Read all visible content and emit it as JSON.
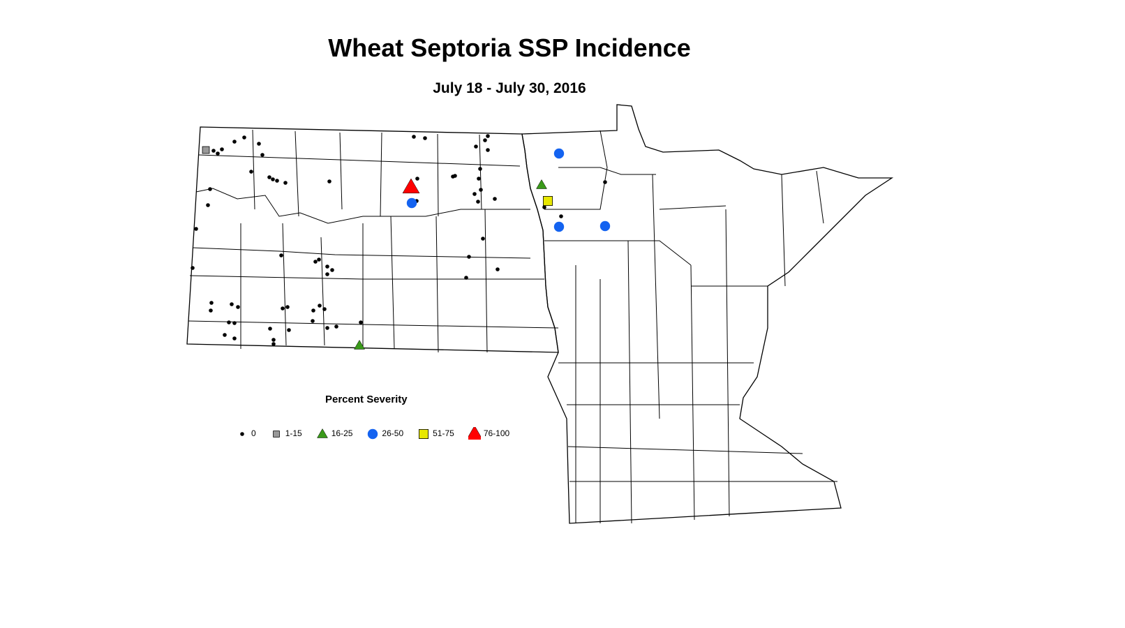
{
  "map": {
    "title": "Wheat Septoria SSP Incidence",
    "subtitle": "July 18 - July 30, 2016",
    "outline_color": "#000000",
    "background": "#ffffff"
  },
  "legend": {
    "title": "Percent Severity",
    "items": [
      {
        "label": "0",
        "shape": "dot",
        "color": "#000000"
      },
      {
        "label": "1-15",
        "shape": "square",
        "color": "#999999"
      },
      {
        "label": "16-25",
        "shape": "triangle",
        "color": "#3a9a1a"
      },
      {
        "label": "26-50",
        "shape": "circle",
        "color": "#1463f0"
      },
      {
        "label": "51-75",
        "shape": "square",
        "color": "#e8e800"
      },
      {
        "label": "76-100",
        "shape": "triangle",
        "color": "#ff0000"
      }
    ]
  }
}
